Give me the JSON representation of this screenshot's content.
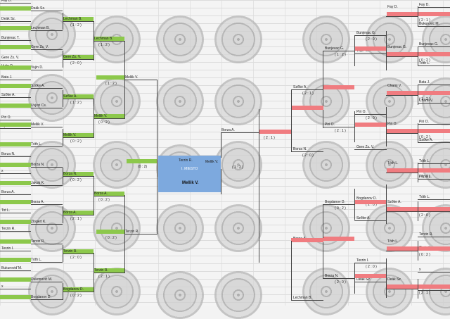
{
  "bracket": {
    "center": {
      "title": "I. MIESTO",
      "winner": "Mellik V.",
      "left_name": "Terzin R.",
      "right_name": "Mellik V.",
      "score": "( 1 : 2 )",
      "left_score": "(0 : 2)"
    },
    "left": {
      "r1": [
        {
          "name": "Fay D."
        },
        {
          "name": "Deák Sz."
        },
        {
          "name": "Bunjevac T."
        },
        {
          "name": "Gere Zs. V."
        },
        {
          "name": "Vujin D."
        },
        {
          "name": "Bata J."
        },
        {
          "name": "Szőke A."
        },
        {
          "name": "Piri O."
        },
        {
          "name": "Nyitrai V."
        },
        {
          "name": "Borza N."
        },
        {
          "name": "x"
        },
        {
          "name": "Borza A."
        },
        {
          "name": "Tot L."
        },
        {
          "name": "Terzin R."
        },
        {
          "name": "Terzin I."
        },
        {
          "name": "Bukuroviď M."
        },
        {
          "name": "x"
        }
      ],
      "r2": [
        {
          "name": "Deák Sz."
        },
        {
          "name": "Lechman B."
        },
        {
          "name": "Gere Zs. V."
        },
        {
          "name": "Vujin D."
        },
        {
          "name": "Szőke A."
        },
        {
          "name": "Uvjvzi Cs."
        },
        {
          "name": "Mellik V."
        },
        {
          "name": "Tóth L."
        },
        {
          "name": "Borza N."
        },
        {
          "name": "Jakob K."
        },
        {
          "name": "Borza A."
        },
        {
          "name": "Zlogert K."
        },
        {
          "name": "Terzin R."
        },
        {
          "name": "Tóth L."
        },
        {
          "name": "Dukonović M."
        },
        {
          "name": "Bogdanov D."
        }
      ],
      "r3": [
        {
          "name": "Lechman B.",
          "score": "( 1 : 2 )"
        },
        {
          "name": "Gere Zs. V.",
          "score": "( 2 : 0 )"
        },
        {
          "name": "Szőke A.",
          "score": "( 1 : 2 )"
        },
        {
          "name": "Mellik V.",
          "score": "( 0 : 2 )"
        },
        {
          "name": "Borza N.",
          "score": "( 0 : 2 )"
        },
        {
          "name": "Borza A.",
          "score": "( 2 : 1 )"
        },
        {
          "name": "Terzin R.",
          "score": "( 2 : 0 )"
        },
        {
          "name": "Bogdanov D.",
          "score": "( 0 : 2 )"
        }
      ],
      "r4": [
        {
          "name": "Lechman B.",
          "score": "( 1 : 2 )"
        },
        {
          "name": "Mellik V.",
          "score": "( 0 : 2 )"
        },
        {
          "name": "Borza A.",
          "score": "( 0 : 2 )"
        },
        {
          "name": "Terzin R.",
          "score": "( 2 : 1 )"
        }
      ],
      "r5": [
        {
          "name": "Mellik V.",
          "score": "( 1 : 2 )"
        },
        {
          "name": "Terzin R.",
          "score": "( 0 : 2 )"
        }
      ]
    },
    "right": {
      "r1": [
        {
          "name": "Fay D."
        },
        {
          "name": "Bukurovic M."
        },
        {
          "name": "Bunjevac G."
        },
        {
          "name": "Tóth L."
        },
        {
          "name": "Bata J."
        },
        {
          "name": "Chami V."
        },
        {
          "name": "Piri O."
        },
        {
          "name": "Szőke A."
        },
        {
          "name": "Tóth L."
        },
        {
          "name": "Pápai L."
        },
        {
          "name": "Tóth L."
        },
        {
          "name": "Szőke A."
        },
        {
          "name": "Terzin R."
        },
        {
          "name": "Tirzin I."
        },
        {
          "name": "x"
        },
        {
          "name": "Deák Sz."
        }
      ],
      "r2": [
        {
          "name": "Fay D.",
          "score": "( 2 : 1 )"
        },
        {
          "name": "Bunjevac G.",
          "score": "( 0 : 2 )"
        },
        {
          "name": "Chami V.",
          "score": "( 1 : 2 )"
        },
        {
          "name": "Piri O.",
          "score": "( 0 : 2 )"
        },
        {
          "name": "Tóth L.",
          "score": "( 0 : 2 )"
        },
        {
          "name": "Szőke A.",
          "score": "( 2 : 0 )"
        },
        {
          "name": "Tóth L.",
          "score": "( 0 : 2 )"
        },
        {
          "name": "Deák Sz.",
          "score": "( 2 : 1 )"
        }
      ],
      "r3": [
        {
          "name": "Bunjevac G.",
          "score": "( 2 : 0 )"
        },
        {
          "name": "Vujin Cs."
        },
        {
          "name": "Piri O.",
          "score": "( 2 : 0 )"
        },
        {
          "name": "Gere Zs. V."
        },
        {
          "name": "Bogdanov D.",
          "score": "( 2 : 0 )"
        },
        {
          "name": "Szőke A."
        },
        {
          "name": "Terzin I.",
          "score": "( 2 : 0 )"
        },
        {
          "name": "Deák Sz."
        }
      ],
      "r4": [
        {
          "name": "Bunjevac G.",
          "score": "( 1 : 2 )"
        },
        {
          "name": "Piri O.",
          "score": "( 2 : 1 )"
        },
        {
          "name": "Bogdanov D.",
          "score": "( 0 : 2 )"
        },
        {
          "name": "Borza N.",
          "score": "( 2 : 0 )"
        }
      ],
      "r5": [
        {
          "name": "Szőke A.",
          "score": "( 2 : 1 )"
        },
        {
          "name": "Borza N.",
          "score": "( 2 : 0 )"
        },
        {
          "name": "Borza A."
        },
        {
          "name": "Lechman B."
        }
      ],
      "r6": [
        {
          "name": "Borza A.",
          "score": "( 2 : 1 )"
        }
      ]
    }
  },
  "colors": {
    "green": "#8cc84b",
    "red": "#f07c80",
    "blue": "#7da9de"
  }
}
